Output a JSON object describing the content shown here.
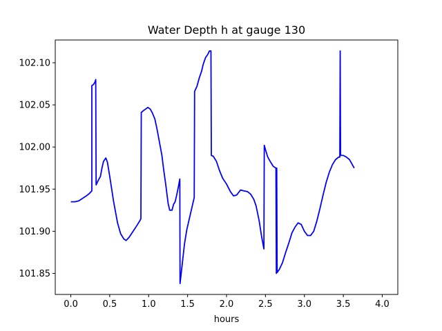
{
  "chart_data": {
    "type": "line",
    "title": "Water Depth h at gauge 130",
    "xlabel": "hours",
    "ylabel": "",
    "xlim": [
      -0.2,
      4.2
    ],
    "ylim": [
      101.825,
      102.127
    ],
    "xticks": [
      0.0,
      0.5,
      1.0,
      1.5,
      2.0,
      2.5,
      3.0,
      3.5,
      4.0
    ],
    "xtick_labels": [
      "0.0",
      "0.5",
      "1.0",
      "1.5",
      "2.0",
      "2.5",
      "3.0",
      "3.5",
      "4.0"
    ],
    "yticks": [
      101.85,
      101.9,
      101.95,
      102.0,
      102.05,
      102.1
    ],
    "ytick_labels": [
      "101.85",
      "101.90",
      "101.95",
      "102.00",
      "102.05",
      "102.10"
    ],
    "grid": false,
    "series": [
      {
        "name": "",
        "color": "#0000ff",
        "points": [
          [
            0.0,
            101.935
          ],
          [
            0.05,
            101.935
          ],
          [
            0.1,
            101.936
          ],
          [
            0.15,
            101.939
          ],
          [
            0.2,
            101.942
          ],
          [
            0.24,
            101.945
          ],
          [
            0.27,
            101.948
          ],
          [
            0.27,
            102.073
          ],
          [
            0.29,
            102.074
          ],
          [
            0.31,
            102.077
          ],
          [
            0.32,
            102.08
          ],
          [
            0.325,
            101.955
          ],
          [
            0.35,
            101.96
          ],
          [
            0.38,
            101.965
          ],
          [
            0.4,
            101.975
          ],
          [
            0.42,
            101.983
          ],
          [
            0.45,
            101.987
          ],
          [
            0.47,
            101.982
          ],
          [
            0.5,
            101.965
          ],
          [
            0.55,
            101.935
          ],
          [
            0.6,
            101.91
          ],
          [
            0.64,
            101.897
          ],
          [
            0.68,
            101.891
          ],
          [
            0.71,
            101.889
          ],
          [
            0.75,
            101.893
          ],
          [
            0.8,
            101.9
          ],
          [
            0.85,
            101.907
          ],
          [
            0.89,
            101.913
          ],
          [
            0.9,
            101.915
          ],
          [
            0.905,
            102.041
          ],
          [
            0.93,
            102.043
          ],
          [
            0.96,
            102.045
          ],
          [
            0.99,
            102.047
          ],
          [
            1.02,
            102.045
          ],
          [
            1.05,
            102.04
          ],
          [
            1.08,
            102.033
          ],
          [
            1.11,
            102.02
          ],
          [
            1.14,
            102.005
          ],
          [
            1.17,
            101.99
          ],
          [
            1.19,
            101.975
          ],
          [
            1.22,
            101.955
          ],
          [
            1.25,
            101.933
          ],
          [
            1.27,
            101.925
          ],
          [
            1.3,
            101.925
          ],
          [
            1.32,
            101.932
          ],
          [
            1.34,
            101.935
          ],
          [
            1.36,
            101.943
          ],
          [
            1.38,
            101.952
          ],
          [
            1.4,
            101.962
          ],
          [
            1.403,
            101.838
          ],
          [
            1.43,
            101.86
          ],
          [
            1.46,
            101.885
          ],
          [
            1.49,
            101.902
          ],
          [
            1.53,
            101.918
          ],
          [
            1.56,
            101.93
          ],
          [
            1.585,
            101.94
          ],
          [
            1.59,
            102.066
          ],
          [
            1.62,
            102.072
          ],
          [
            1.65,
            102.082
          ],
          [
            1.68,
            102.09
          ],
          [
            1.7,
            102.098
          ],
          [
            1.73,
            102.106
          ],
          [
            1.76,
            102.11
          ],
          [
            1.78,
            102.114
          ],
          [
            1.8,
            102.114
          ],
          [
            1.805,
            101.99
          ],
          [
            1.83,
            101.989
          ],
          [
            1.87,
            101.983
          ],
          [
            1.91,
            101.972
          ],
          [
            1.95,
            101.963
          ],
          [
            2.0,
            101.956
          ],
          [
            2.05,
            101.947
          ],
          [
            2.09,
            101.942
          ],
          [
            2.13,
            101.943
          ],
          [
            2.18,
            101.949
          ],
          [
            2.22,
            101.948
          ],
          [
            2.27,
            101.947
          ],
          [
            2.31,
            101.944
          ],
          [
            2.35,
            101.938
          ],
          [
            2.38,
            101.93
          ],
          [
            2.42,
            101.912
          ],
          [
            2.45,
            101.894
          ],
          [
            2.48,
            101.879
          ],
          [
            2.485,
            102.002
          ],
          [
            2.5,
            101.997
          ],
          [
            2.53,
            101.988
          ],
          [
            2.56,
            101.983
          ],
          [
            2.6,
            101.977
          ],
          [
            2.635,
            101.975
          ],
          [
            2.64,
            101.85
          ],
          [
            2.645,
            101.975
          ],
          [
            2.65,
            101.851
          ],
          [
            2.68,
            101.855
          ],
          [
            2.72,
            101.863
          ],
          [
            2.76,
            101.875
          ],
          [
            2.8,
            101.886
          ],
          [
            2.84,
            101.898
          ],
          [
            2.88,
            101.905
          ],
          [
            2.92,
            101.91
          ],
          [
            2.96,
            101.908
          ],
          [
            3.0,
            101.9
          ],
          [
            3.04,
            101.895
          ],
          [
            3.08,
            101.895
          ],
          [
            3.12,
            101.9
          ],
          [
            3.16,
            101.912
          ],
          [
            3.2,
            101.927
          ],
          [
            3.24,
            101.943
          ],
          [
            3.28,
            101.958
          ],
          [
            3.32,
            101.97
          ],
          [
            3.36,
            101.979
          ],
          [
            3.4,
            101.985
          ],
          [
            3.44,
            101.988
          ],
          [
            3.455,
            101.988
          ],
          [
            3.46,
            102.114
          ],
          [
            3.465,
            101.99
          ],
          [
            3.5,
            101.99
          ],
          [
            3.54,
            101.988
          ],
          [
            3.58,
            101.985
          ],
          [
            3.61,
            101.98
          ],
          [
            3.64,
            101.975
          ]
        ]
      }
    ]
  }
}
